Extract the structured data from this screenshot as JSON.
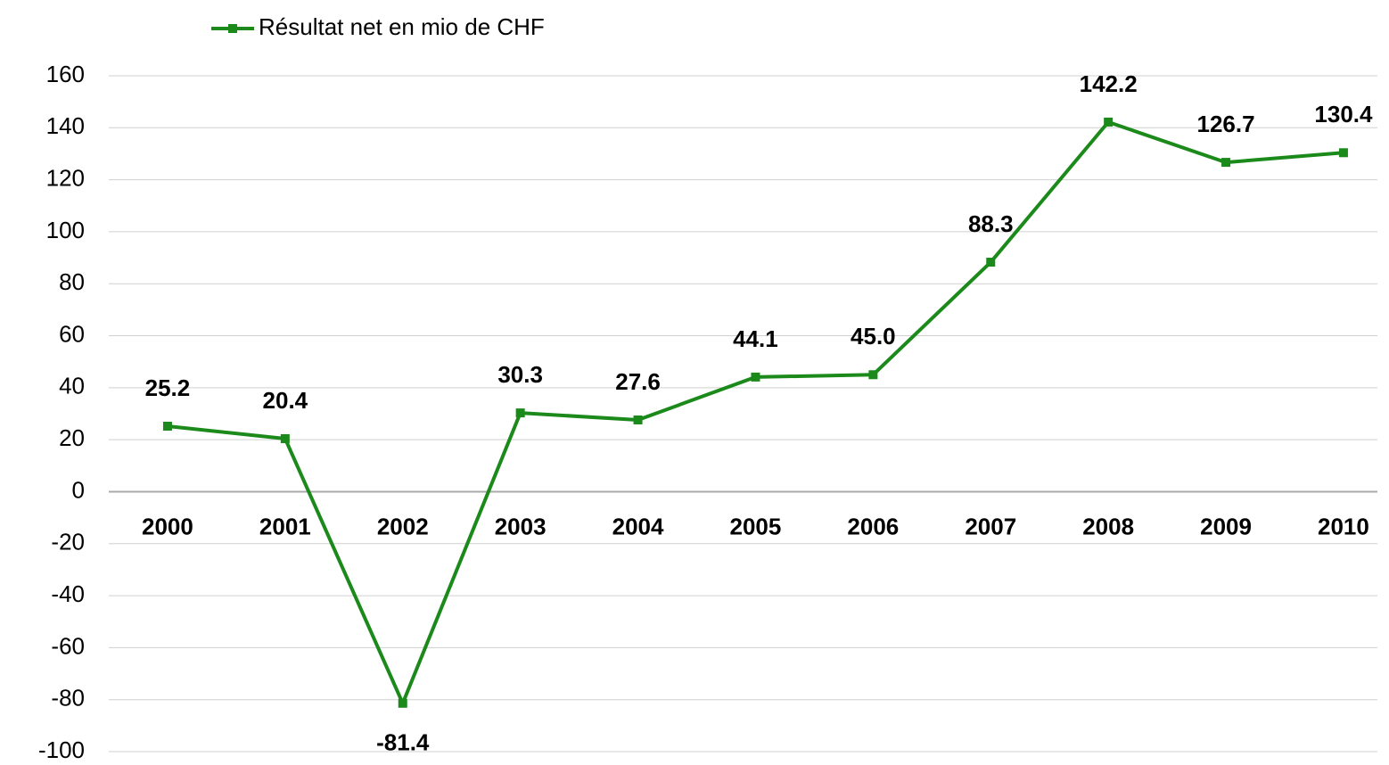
{
  "chart_data": {
    "type": "line",
    "categories": [
      "2000",
      "2001",
      "2002",
      "2003",
      "2004",
      "2005",
      "2006",
      "2007",
      "2008",
      "2009",
      "2010"
    ],
    "series": [
      {
        "name": "Résultat net en mio de CHF",
        "color": "#1b8a1b",
        "values": [
          25.2,
          20.4,
          -81.4,
          30.3,
          27.6,
          44.1,
          45.0,
          88.3,
          142.2,
          126.7,
          130.4
        ],
        "value_labels": [
          "25.2",
          "20.4",
          "-81.4",
          "30.3",
          "27.6",
          "44.1",
          "45.0",
          "88.3",
          "142.2",
          "126.7",
          "130.4"
        ]
      }
    ],
    "ylim": [
      -100,
      160
    ],
    "yticks": [
      -100,
      -80,
      -60,
      -40,
      -20,
      0,
      20,
      40,
      60,
      80,
      100,
      120,
      140,
      160
    ],
    "grid": true,
    "legend": "top-left"
  }
}
